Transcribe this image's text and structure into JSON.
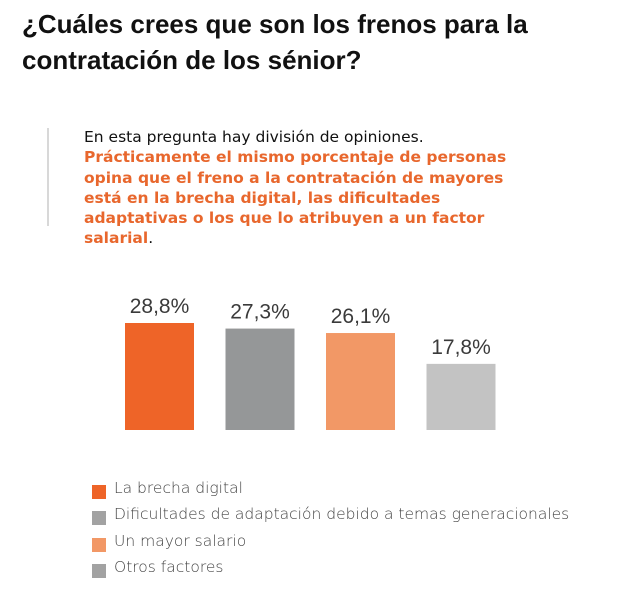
{
  "title": "¿Cuáles crees que son los frenos para la contratación de los sénior?",
  "intro": {
    "plain": "En esta pregunta hay división de opiniones.",
    "highlight": "Prácticamente el mismo porcentaje de personas opina que el freno a la contratación de mayores está en la brecha digital, las dificultades adaptativas o los que lo atribuyen a un factor salarial",
    "end": "."
  },
  "chart_data": {
    "type": "bar",
    "categories": [
      "La brecha digital",
      "Dificultades de adaptación debido a temas generacionales",
      "Un mayor salario",
      "Otros factores"
    ],
    "values": [
      28.8,
      27.3,
      26.1,
      17.8
    ],
    "data_labels": [
      "28,8%",
      "27,3%",
      "26,1%",
      "17,8%"
    ],
    "colors": [
      "#ee6428",
      "#959798",
      "#f29866",
      "#c3c3c3"
    ],
    "legend_colors": [
      "#ee6428",
      "#a2a2a2",
      "#f29866",
      "#a2a2a2"
    ],
    "legend_position": "bottom-left",
    "grid": false,
    "ylim": [
      0,
      28.8
    ]
  }
}
